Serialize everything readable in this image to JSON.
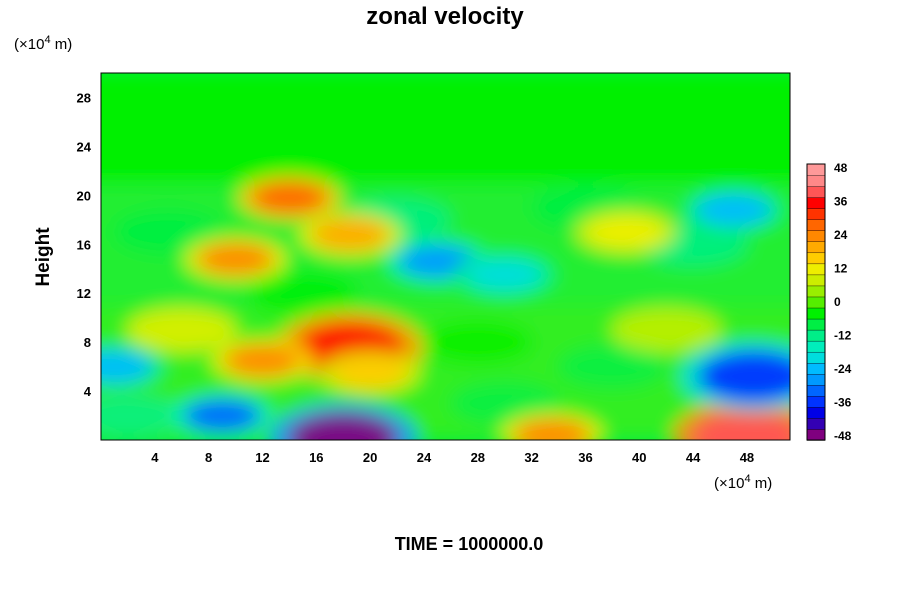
{
  "chart_data": {
    "type": "heatmap",
    "title": "zonal velocity",
    "ylabel": "Height",
    "x_unit_prefix": "(×10",
    "x_unit_exp": "4",
    "x_unit_suffix": " m)",
    "y_unit_prefix": "(×10",
    "y_unit_exp": "4",
    "y_unit_suffix": " m)",
    "x_ticks": [
      "4",
      "8",
      "12",
      "16",
      "20",
      "24",
      "28",
      "32",
      "36",
      "40",
      "44",
      "48"
    ],
    "y_ticks": [
      "4",
      "8",
      "12",
      "16",
      "20",
      "24",
      "28"
    ],
    "xlim": [
      0,
      51.2
    ],
    "ylim": [
      0,
      30
    ],
    "colorbar": {
      "ticks": [
        "48",
        "36",
        "24",
        "12",
        "0",
        "-12",
        "-24",
        "-36",
        "-48"
      ],
      "range": [
        -48,
        48
      ],
      "colors": [
        "#7f007f",
        "#3300b3",
        "#0000e6",
        "#0033ff",
        "#0066ff",
        "#0099ff",
        "#00bbff",
        "#00dddd",
        "#00eebb",
        "#00ee88",
        "#00ee44",
        "#00f000",
        "#55ee00",
        "#99ee00",
        "#ccee00",
        "#eeee00",
        "#ffcc00",
        "#ffaa00",
        "#ff8800",
        "#ff6600",
        "#ff3300",
        "#ff0000",
        "#ff5555",
        "#ff8888",
        "#ff9999"
      ]
    },
    "features": [
      {
        "x": 18.5,
        "y": 7.6,
        "value": 34
      },
      {
        "x": 12,
        "y": 6.5,
        "value": 22
      },
      {
        "x": 20,
        "y": 5.5,
        "value": 16
      },
      {
        "x": 48,
        "y": 0.3,
        "value": 40
      },
      {
        "x": 33.5,
        "y": 0.4,
        "value": 24
      },
      {
        "x": 18,
        "y": 0.1,
        "value": -46
      },
      {
        "x": 48.5,
        "y": 5.2,
        "value": -36
      },
      {
        "x": 9,
        "y": 2,
        "value": -30
      },
      {
        "x": 47,
        "y": 18.8,
        "value": -24
      },
      {
        "x": 25,
        "y": 14.6,
        "value": -28
      },
      {
        "x": 30,
        "y": 13.5,
        "value": -18
      },
      {
        "x": 14,
        "y": 19.8,
        "value": 26
      },
      {
        "x": 18.5,
        "y": 16.8,
        "value": 20
      },
      {
        "x": 10,
        "y": 14.8,
        "value": 22
      },
      {
        "x": 1,
        "y": 6,
        "value": -22
      },
      {
        "x": 39,
        "y": 17,
        "value": 12
      }
    ]
  },
  "footer": {
    "time_label": "TIME = 1000000.0"
  }
}
